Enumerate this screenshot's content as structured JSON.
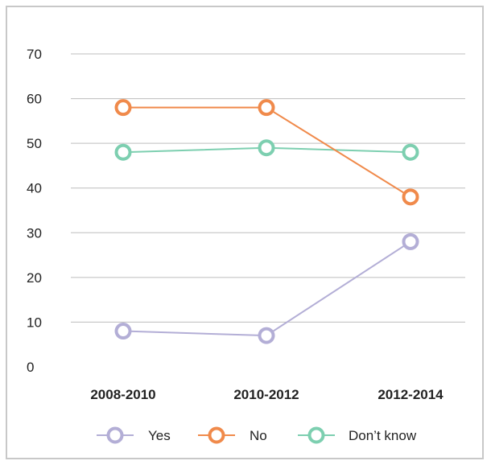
{
  "chart_data": {
    "type": "line",
    "categories": [
      "2008-2010",
      "2010-2012",
      "2012-2014"
    ],
    "series": [
      {
        "name": "Yes",
        "values": [
          8,
          7,
          28
        ],
        "color": "#b3aed6"
      },
      {
        "name": "No",
        "values": [
          58,
          58,
          38
        ],
        "color": "#f08a4b"
      },
      {
        "name": "Don’t know",
        "values": [
          48,
          49,
          48
        ],
        "color": "#7dcfb0"
      }
    ],
    "title": "",
    "xlabel": "",
    "ylabel": "",
    "ylim": [
      0,
      70
    ],
    "yticks": [
      0,
      10,
      20,
      30,
      40,
      50,
      60,
      70
    ],
    "grid": true,
    "legend_position": "bottom"
  }
}
